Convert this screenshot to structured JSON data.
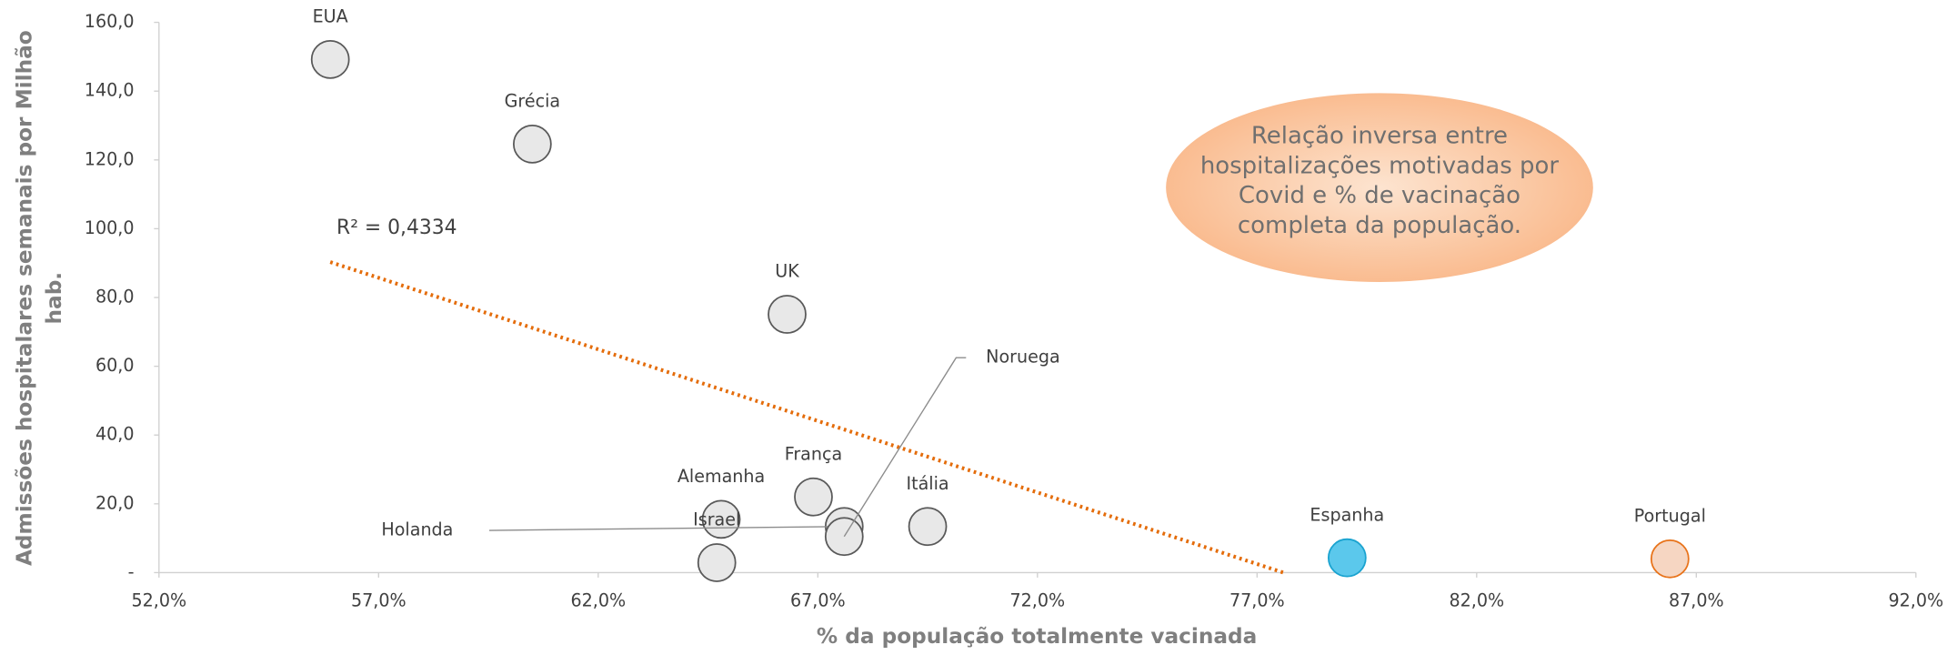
{
  "chart_data": {
    "type": "scatter",
    "xlabel": "% da população totalmente vacinada",
    "ylabel": "Admissões hospitalares semanais por Milhão hab.",
    "categories": [
      "EUA",
      "Grécia",
      "UK",
      "França",
      "Alemanha",
      "Israel",
      "Holanda",
      "Noruega",
      "Itália",
      "Espanha",
      "Portugal"
    ],
    "x": [
      55.9,
      60.5,
      66.3,
      66.9,
      64.8,
      64.7,
      67.6,
      67.6,
      69.5,
      79.05,
      86.4
    ],
    "values": [
      149.2,
      124.6,
      75.1,
      22.0,
      15.5,
      2.9,
      13.4,
      10.5,
      13.4,
      4.3,
      4.0
    ],
    "colors": [
      "#e8e8e8",
      "#e8e8e8",
      "#e8e8e8",
      "#e8e8e8",
      "#e8e8e8",
      "#e8e8e8",
      "#e8e8e8",
      "#e8e8e8",
      "#e8e8e8",
      "#5bc8ec",
      "#f6d6c2"
    ],
    "trendline": {
      "x": [
        55.9,
        77.6
      ],
      "y": [
        90.3,
        0
      ],
      "color": "#e46c0a",
      "label": "R² = 0,4334"
    },
    "annotation": [
      "Relação inversa entre",
      "hospitalizações motivadas por",
      "Covid e % de vacinação",
      "completa da população."
    ],
    "xlim": [
      52,
      92
    ],
    "xticks": [
      {
        "value": 52,
        "label": "52,0%"
      },
      {
        "value": 57,
        "label": "57,0%"
      },
      {
        "value": 62,
        "label": "62,0%"
      },
      {
        "value": 67,
        "label": "67,0%"
      },
      {
        "value": 72,
        "label": "72,0%"
      },
      {
        "value": 77,
        "label": "77,0%"
      },
      {
        "value": 82,
        "label": "82,0%"
      },
      {
        "value": 87,
        "label": "87,0%"
      },
      {
        "value": 92,
        "label": "92,0%"
      }
    ],
    "ylim": [
      0,
      160
    ],
    "yticks": [
      {
        "value": 0,
        "label": "-"
      },
      {
        "value": 20,
        "label": "20,0"
      },
      {
        "value": 40,
        "label": "40,0"
      },
      {
        "value": 60,
        "label": "60,0"
      },
      {
        "value": 80,
        "label": "80,0"
      },
      {
        "value": 100,
        "label": "100,0"
      },
      {
        "value": 120,
        "label": "120,0"
      },
      {
        "value": 140,
        "label": "140,0"
      },
      {
        "value": 160,
        "label": "160,0"
      }
    ]
  }
}
